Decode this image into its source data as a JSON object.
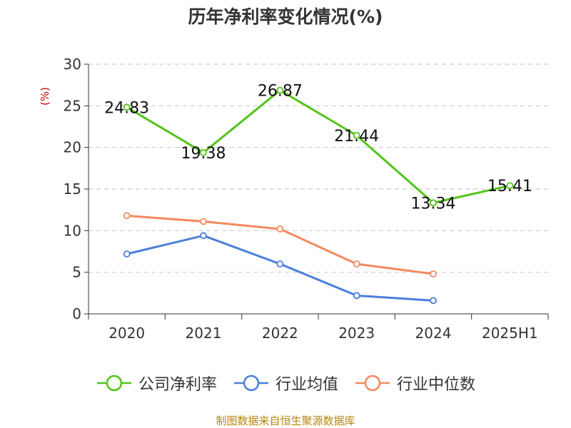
{
  "chart_data": {
    "type": "line",
    "title": "历年净利率变化情况(%)",
    "unit": "(%)",
    "categories": [
      "2020",
      "2021",
      "2022",
      "2023",
      "2024",
      "2025H1"
    ],
    "ylim": [
      0,
      30
    ],
    "yticks": [
      0,
      5,
      10,
      15,
      20,
      25,
      30
    ],
    "grid": true,
    "legend_position": "bottom",
    "series": [
      {
        "name": "公司净利率",
        "color": "#52c41a",
        "show_labels": true,
        "values": [
          24.83,
          19.38,
          26.87,
          21.44,
          13.34,
          15.41
        ],
        "labels": [
          "24.83",
          "19.38",
          "26.87",
          "21.44",
          "13.34",
          "15.41"
        ]
      },
      {
        "name": "行业均值",
        "color": "#4a7fdb",
        "show_labels": false,
        "values": [
          7.2,
          9.4,
          6.0,
          2.2,
          1.6,
          null
        ]
      },
      {
        "name": "行业中位数",
        "color": "#f4895f",
        "show_labels": false,
        "values": [
          11.8,
          11.1,
          10.2,
          6.0,
          4.8,
          null
        ]
      }
    ]
  },
  "footer": {
    "source": "制图数据来自恒生聚源数据库"
  }
}
